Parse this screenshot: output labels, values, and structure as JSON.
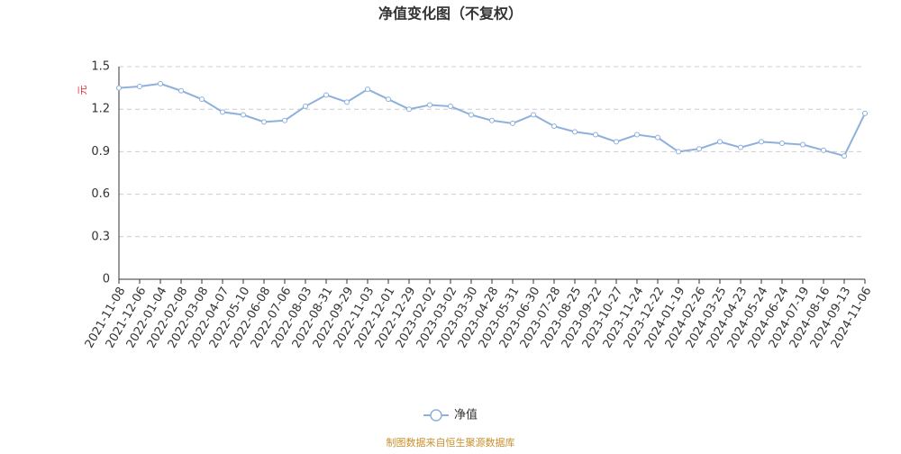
{
  "chart_data": {
    "type": "line",
    "title": "净值变化图（不复权）",
    "y_label": "元",
    "categories": [
      "2021-11-08",
      "2021-12-06",
      "2022-01-04",
      "2022-02-08",
      "2022-03-08",
      "2022-04-07",
      "2022-05-10",
      "2022-06-08",
      "2022-07-06",
      "2022-08-03",
      "2022-08-31",
      "2022-09-29",
      "2022-11-03",
      "2022-12-01",
      "2022-12-29",
      "2023-02-02",
      "2023-03-02",
      "2023-03-30",
      "2023-04-28",
      "2023-05-31",
      "2023-06-30",
      "2023-07-28",
      "2023-08-25",
      "2023-09-22",
      "2023-10-27",
      "2023-11-24",
      "2023-12-22",
      "2024-01-19",
      "2024-02-26",
      "2024-03-25",
      "2024-04-23",
      "2024-05-24",
      "2024-06-24",
      "2024-07-19",
      "2024-08-16",
      "2024-09-13",
      "2024-11-06"
    ],
    "series": [
      {
        "name": "净值",
        "color": "#8eb0dc",
        "values": [
          1.35,
          1.36,
          1.38,
          1.33,
          1.27,
          1.18,
          1.16,
          1.11,
          1.12,
          1.22,
          1.3,
          1.25,
          1.34,
          1.27,
          1.2,
          1.23,
          1.22,
          1.16,
          1.12,
          1.1,
          1.16,
          1.08,
          1.04,
          1.02,
          0.97,
          1.02,
          1.0,
          0.9,
          0.92,
          0.97,
          0.93,
          0.97,
          0.96,
          0.95,
          0.91,
          0.87,
          1.17
        ]
      }
    ],
    "ylim": [
      0,
      1.5
    ],
    "yticks": [
      0,
      0.3,
      0.6,
      0.9,
      1.2,
      1.5
    ],
    "grid": true,
    "legend": "bottom",
    "source": "制图数据来自恒生聚源数据库"
  }
}
